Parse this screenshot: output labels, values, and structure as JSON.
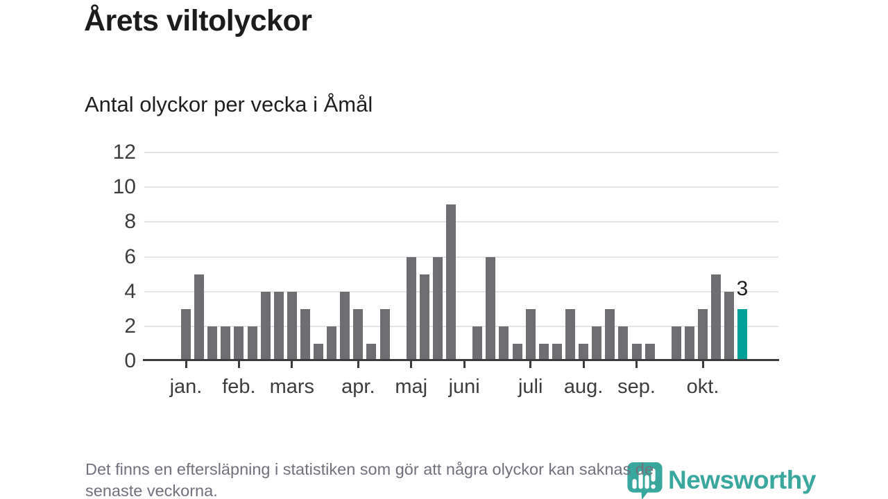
{
  "page": {
    "title": "Årets viltolyckor",
    "subtitle": "Antal olyckor per vecka i Åmål",
    "footnote_lines": [
      "Det finns en eftersläpning i statistiken som gör att några olyckor kan saknas de",
      "senaste veckorna."
    ],
    "brand": "Newsworthy"
  },
  "chart_data": {
    "type": "bar",
    "title": "Årets viltolyckor",
    "subtitle": "Antal olyckor per vecka i Åmål",
    "x_unit": "vecka",
    "ylim": [
      0,
      12
    ],
    "yticks": [
      0,
      2,
      4,
      6,
      8,
      10,
      12
    ],
    "grid": true,
    "months": [
      {
        "label": "jan.",
        "weeks": 4,
        "values": [
          3,
          5,
          2,
          2
        ]
      },
      {
        "label": "feb.",
        "weeks": 4,
        "values": [
          2,
          2,
          4,
          4
        ]
      },
      {
        "label": "mars",
        "weeks": 5,
        "values": [
          4,
          3,
          1,
          2,
          4
        ]
      },
      {
        "label": "apr.",
        "weeks": 4,
        "values": [
          3,
          1,
          3,
          0
        ]
      },
      {
        "label": "maj",
        "weeks": 4,
        "values": [
          6,
          5,
          6,
          9
        ]
      },
      {
        "label": "juni",
        "weeks": 5,
        "values": [
          0,
          2,
          6,
          2,
          1
        ]
      },
      {
        "label": "juli",
        "weeks": 4,
        "values": [
          3,
          1,
          1,
          3
        ]
      },
      {
        "label": "aug.",
        "weeks": 4,
        "values": [
          1,
          2,
          3,
          2
        ]
      },
      {
        "label": "sep.",
        "weeks": 5,
        "values": [
          1,
          1,
          0,
          2,
          2
        ]
      },
      {
        "label": "okt.",
        "weeks": 4,
        "values": [
          3,
          5,
          4,
          3
        ]
      }
    ],
    "highlight": {
      "month": "okt.",
      "week_in_month": 4,
      "value": 3,
      "label": "3"
    },
    "colors": {
      "bar": "#6d6d72",
      "highlight": "#00a099",
      "grid": "#e4e4e4",
      "axis": "#3b3b3b",
      "brand": "#3aa79e"
    }
  }
}
